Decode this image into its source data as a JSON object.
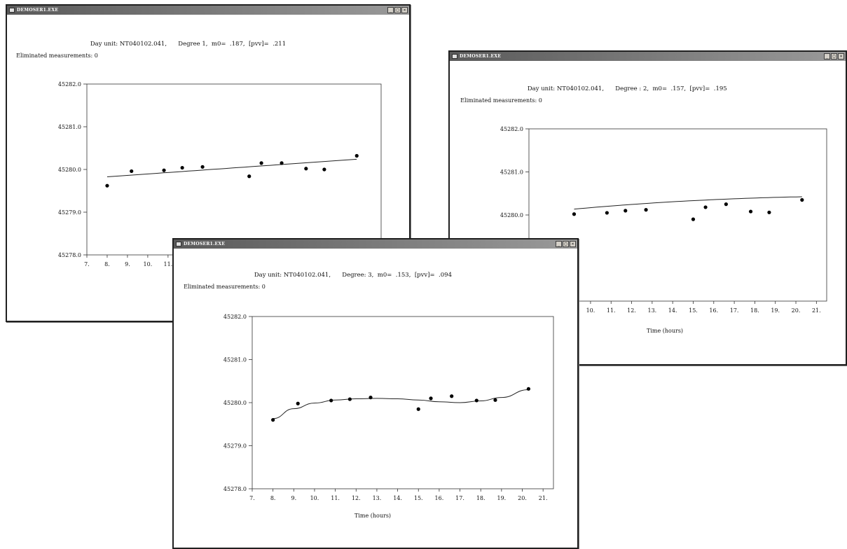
{
  "windows": [
    {
      "title": "DEMOSER1.EXE",
      "header": {
        "day_unit_label": "Day unit:",
        "day_unit_value": "NT040102.041,",
        "degree_label": "Degree",
        "degree_value": "1,",
        "m0_label": "m0=",
        "m0_value": ".187,",
        "pvv_label": "[pvv]=",
        "pvv_value": ".211"
      },
      "eliminated_label": "Eliminated measurements:",
      "eliminated_value": "0",
      "x_axis_title": "",
      "chart_data": {
        "type": "scatter",
        "fit_degree": 1,
        "x_ticks": [
          "7.",
          "8.",
          "9.",
          "10.",
          "11."
        ],
        "y_ticks": [
          "45282.0",
          "45281.0",
          "45280.0",
          "45279.0",
          "45278.0"
        ],
        "xlim": [
          7,
          21.5
        ],
        "ylim": [
          45278.0,
          45282.0
        ],
        "points": {
          "x": [
            8.0,
            9.2,
            10.8,
            11.7,
            12.7,
            15.0,
            15.6,
            16.6,
            17.8,
            18.7,
            20.3
          ],
          "y": [
            45279.62,
            45279.96,
            45279.98,
            45280.04,
            45280.06,
            45279.84,
            45280.15,
            45280.15,
            45280.02,
            45280.0,
            45280.32
          ]
        },
        "fit_coefficients": [
          45279.56,
          0.0335
        ]
      }
    },
    {
      "title": "DEMOSER1.EXE",
      "header": {
        "day_unit_label": "Day unit:",
        "day_unit_value": "NT040102.041,",
        "degree_label": "Degree :",
        "degree_value": "2,",
        "m0_label": "m0=",
        "m0_value": ".157,",
        "pvv_label": "[pvv]=",
        "pvv_value": ".195"
      },
      "eliminated_label": "Eliminated measurements:",
      "eliminated_value": "0",
      "x_axis_title": "Time (hours)",
      "chart_data": {
        "type": "scatter",
        "fit_degree": 2,
        "x_ticks": [
          "10.",
          "11.",
          "12.",
          "13.",
          "14.",
          "15.",
          "16.",
          "17.",
          "18.",
          "19.",
          "20.",
          "21."
        ],
        "y_ticks": [
          "45282.0",
          "45281.0",
          "45280.0"
        ],
        "xlim": [
          7,
          21.5
        ],
        "ylim": [
          45278.0,
          45282.0
        ],
        "points": {
          "x": [
            9.2,
            10.8,
            11.7,
            12.7,
            15.0,
            15.6,
            16.6,
            17.8,
            18.7,
            20.3
          ],
          "y": [
            45280.02,
            45280.05,
            45280.1,
            45280.12,
            45279.9,
            45280.18,
            45280.25,
            45280.08,
            45280.06,
            45280.35
          ]
        },
        "fit_coefficients": [
          45279.62,
          0.07,
          -0.0015
        ]
      }
    },
    {
      "title": "DEMOSER1.EXE",
      "header": {
        "day_unit_label": "Day unit:",
        "day_unit_value": "NT040102.041,",
        "degree_label": "Degree:",
        "degree_value": "3,",
        "m0_label": "m0=",
        "m0_value": ".153,",
        "pvv_label": "[pvv]=",
        "pvv_value": ".094"
      },
      "eliminated_label": "Eliminated measurements:",
      "eliminated_value": "0",
      "x_axis_title": "Time (hours)",
      "chart_data": {
        "type": "scatter",
        "fit_degree": 3,
        "x_ticks": [
          "7.",
          "8.",
          "9.",
          "10.",
          "11.",
          "12.",
          "13.",
          "14.",
          "15.",
          "16.",
          "17.",
          "18.",
          "19.",
          "20.",
          "21."
        ],
        "y_ticks": [
          "45282.0",
          "45281.0",
          "45280.0",
          "45279.0",
          "45278.0"
        ],
        "xlim": [
          7,
          21.5
        ],
        "ylim": [
          45278.0,
          45282.0
        ],
        "points": {
          "x": [
            8.0,
            9.2,
            10.8,
            11.7,
            12.7,
            15.0,
            15.6,
            16.6,
            17.8,
            18.7,
            20.3
          ],
          "y": [
            45279.6,
            45279.98,
            45280.05,
            45280.08,
            45280.12,
            45279.85,
            45280.1,
            45280.15,
            45280.05,
            45280.06,
            45280.32
          ]
        },
        "fit_curve": {
          "x": [
            8.0,
            9.0,
            10.0,
            11.0,
            12.0,
            13.0,
            14.0,
            15.0,
            16.0,
            17.0,
            18.0,
            19.0,
            20.3
          ],
          "y": [
            45279.63,
            45279.86,
            45279.99,
            45280.06,
            45280.09,
            45280.1,
            45280.09,
            45280.06,
            45280.02,
            45280.0,
            45280.04,
            45280.12,
            45280.3
          ]
        }
      }
    }
  ],
  "colors": {
    "titlebar": "#6e6e6e",
    "plot_line": "#222222",
    "point": "#000000"
  }
}
